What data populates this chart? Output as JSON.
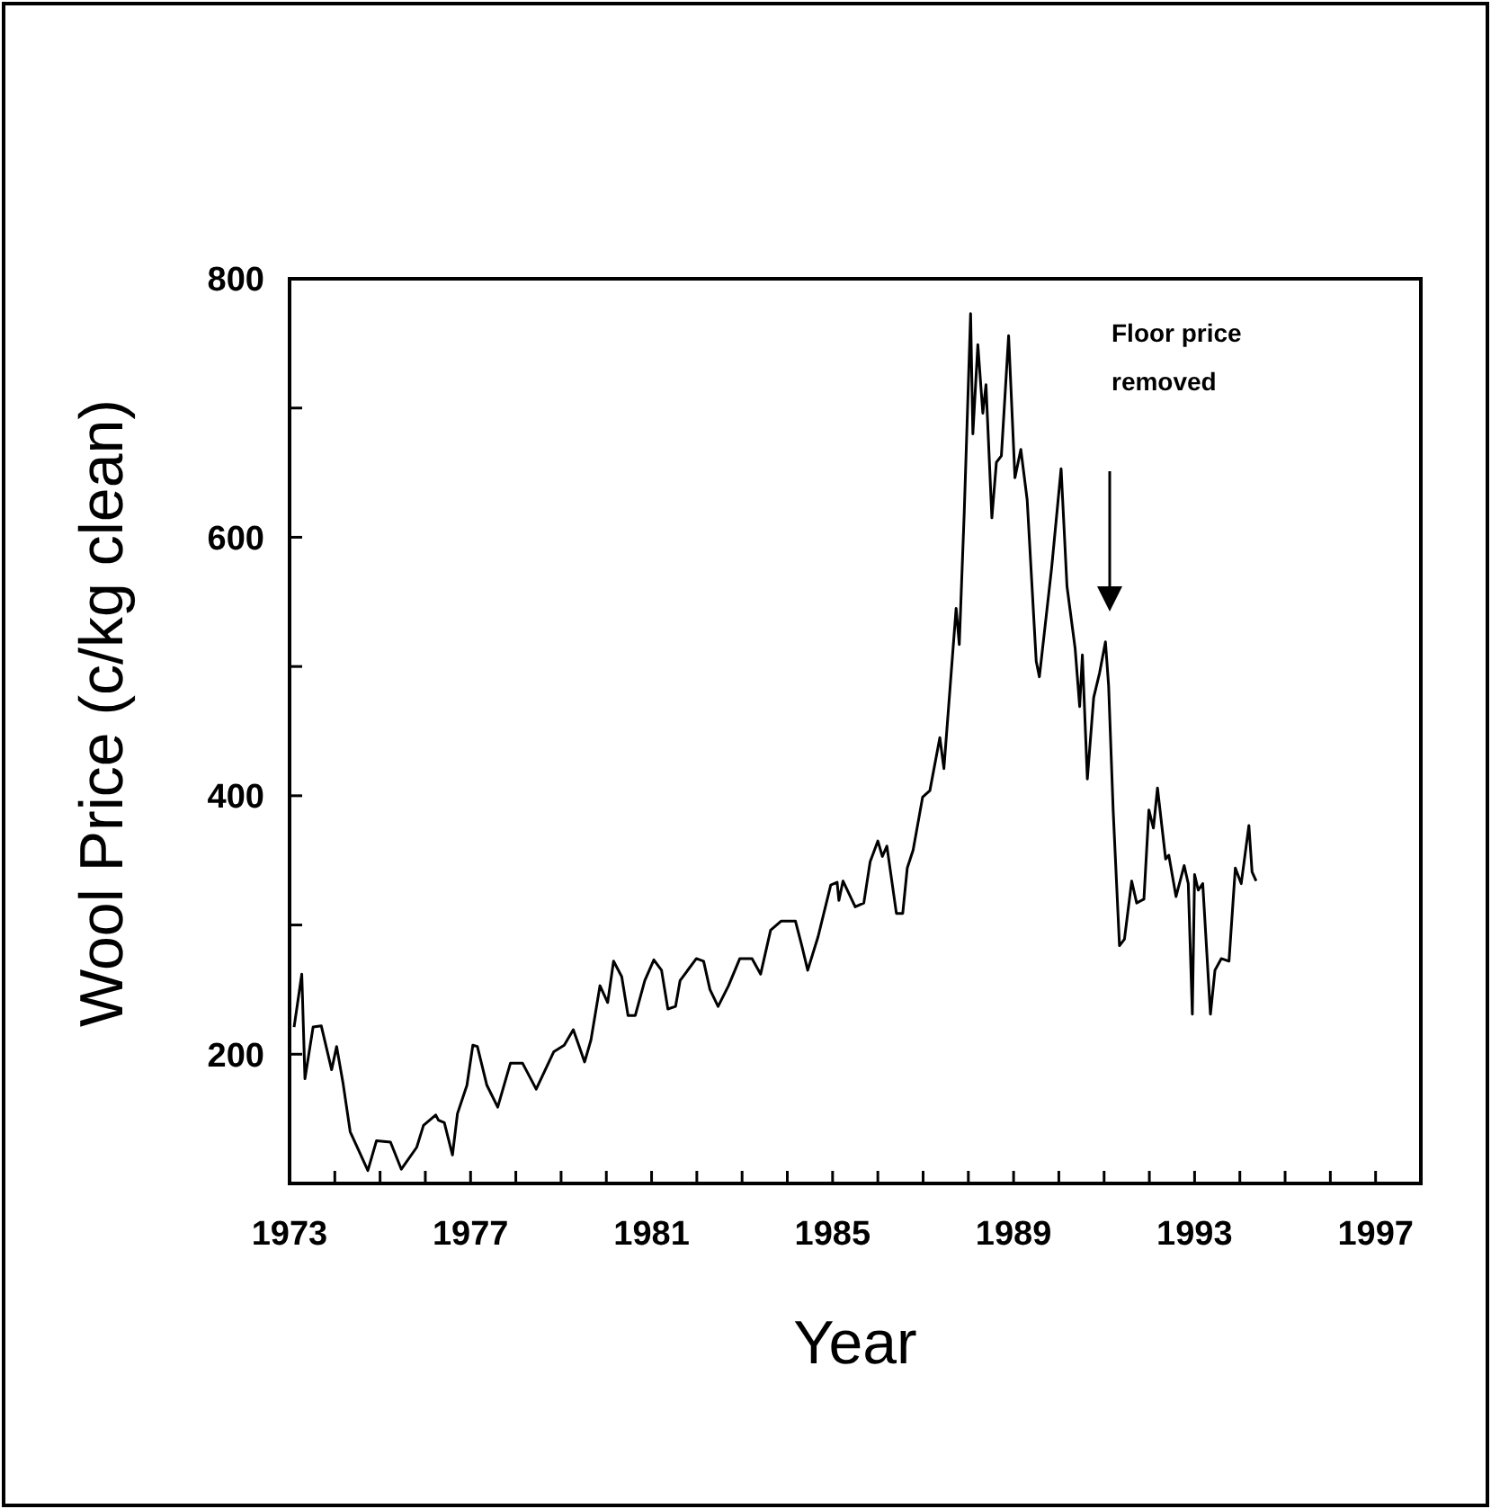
{
  "chart_data": {
    "type": "line",
    "xlabel": "Year",
    "ylabel": "Wool Price (c/kg clean)",
    "xlim": [
      1973,
      1998
    ],
    "xticks": [
      1973,
      {
        "value": 1974,
        "label": null
      },
      {
        "value": 1975,
        "label": null
      },
      {
        "value": 1976,
        "label": null
      },
      1977,
      {
        "value": 1978,
        "label": null
      },
      {
        "value": 1979,
        "label": null
      },
      {
        "value": 1980,
        "label": null
      },
      1981,
      {
        "value": 1982,
        "label": null
      },
      {
        "value": 1983,
        "label": null
      },
      {
        "value": 1984,
        "label": null
      },
      1985,
      {
        "value": 1986,
        "label": null
      },
      {
        "value": 1987,
        "label": null
      },
      {
        "value": 1988,
        "label": null
      },
      1989,
      {
        "value": 1990,
        "label": null
      },
      {
        "value": 1991,
        "label": null
      },
      {
        "value": 1992,
        "label": null
      },
      1993,
      {
        "value": 1994,
        "label": null
      },
      {
        "value": 1995,
        "label": null
      },
      {
        "value": 1996,
        "label": null
      },
      1997
    ],
    "ylim": [
      100,
      800
    ],
    "yticks": [
      200,
      {
        "value": 300,
        "label": null
      },
      400,
      {
        "value": 500,
        "label": null
      },
      600,
      {
        "value": 700,
        "label": null
      },
      800
    ],
    "grid": false,
    "marker": "none",
    "line_style": "solid",
    "annotations": [
      "Floor price removed"
    ],
    "series": [
      {
        "color": "#000000",
        "x": [
          1973.1,
          1973.27,
          1973.34,
          1973.52,
          1973.7,
          1973.93,
          1974.04,
          1974.18,
          1974.34,
          1974.73,
          1974.92,
          1975.23,
          1975.47,
          1975.81,
          1975.96,
          1976.23,
          1976.29,
          1976.42,
          1976.6,
          1976.71,
          1976.92,
          1977.05,
          1977.15,
          1977.36,
          1977.6,
          1977.88,
          1978.15,
          1978.45,
          1978.84,
          1979.07,
          1979.27,
          1979.41,
          1979.52,
          1979.66,
          1979.86,
          1980.03,
          1980.16,
          1980.34,
          1980.48,
          1980.64,
          1980.85,
          1981.05,
          1981.22,
          1981.36,
          1981.53,
          1981.63,
          1981.99,
          1982.15,
          1982.29,
          1982.47,
          1982.7,
          1982.95,
          1983.22,
          1983.41,
          1983.63,
          1983.86,
          1984.18,
          1984.32,
          1984.45,
          1984.68,
          1984.96,
          1985.1,
          1985.14,
          1985.23,
          1985.5,
          1985.69,
          1985.83,
          1986.0,
          1986.1,
          1986.2,
          1986.41,
          1986.55,
          1986.65,
          1986.78,
          1986.99,
          1987.15,
          1987.37,
          1987.46,
          1987.73,
          1987.8,
          1987.91,
          1988.05,
          1988.1,
          1988.21,
          1988.32,
          1988.39,
          1988.52,
          1988.62,
          1988.73,
          1988.89,
          1989.03,
          1989.16,
          1989.3,
          1989.5,
          1989.57,
          1989.84,
          1990.05,
          1990.18,
          1990.36,
          1990.46,
          1990.52,
          1990.63,
          1990.77,
          1990.9,
          1991.03,
          1991.1,
          1991.2,
          1991.34,
          1991.45,
          1991.61,
          1991.72,
          1991.88,
          1991.99,
          1992.09,
          1992.18,
          1992.36,
          1992.43,
          1992.59,
          1992.77,
          1992.86,
          1992.95,
          1993.0,
          1993.08,
          1993.18,
          1993.35,
          1993.45,
          1993.59,
          1993.76,
          1993.9,
          1994.03,
          1994.2,
          1994.27,
          1994.36
        ],
        "values": [
          221,
          262,
          181,
          221,
          222,
          188,
          206,
          178,
          140,
          110,
          133,
          132,
          111,
          128,
          145,
          153,
          149,
          147,
          122,
          154,
          176,
          207,
          206,
          176,
          159,
          193,
          193,
          173,
          202,
          207,
          219,
          205,
          194,
          211,
          253,
          240,
          272,
          260,
          230,
          230,
          257,
          273,
          265,
          235,
          237,
          257,
          274,
          272,
          250,
          237,
          253,
          274,
          274,
          262,
          296,
          303,
          303,
          284,
          265,
          291,
          331,
          333,
          319,
          334,
          314,
          317,
          349,
          365,
          353,
          361,
          309,
          309,
          344,
          358,
          399,
          404,
          445,
          421,
          545,
          517,
          620,
          773,
          680,
          749,
          696,
          718,
          615,
          658,
          663,
          756,
          646,
          668,
          629,
          504,
          492,
          576,
          653,
          562,
          514,
          469,
          509,
          413,
          476,
          495,
          519,
          485,
          389,
          284,
          289,
          334,
          317,
          320,
          389,
          375,
          406,
          351,
          354,
          322,
          346,
          332,
          231,
          339,
          327,
          332,
          231,
          265,
          274,
          272,
          344,
          332,
          377,
          341,
          334
        ]
      }
    ]
  }
}
